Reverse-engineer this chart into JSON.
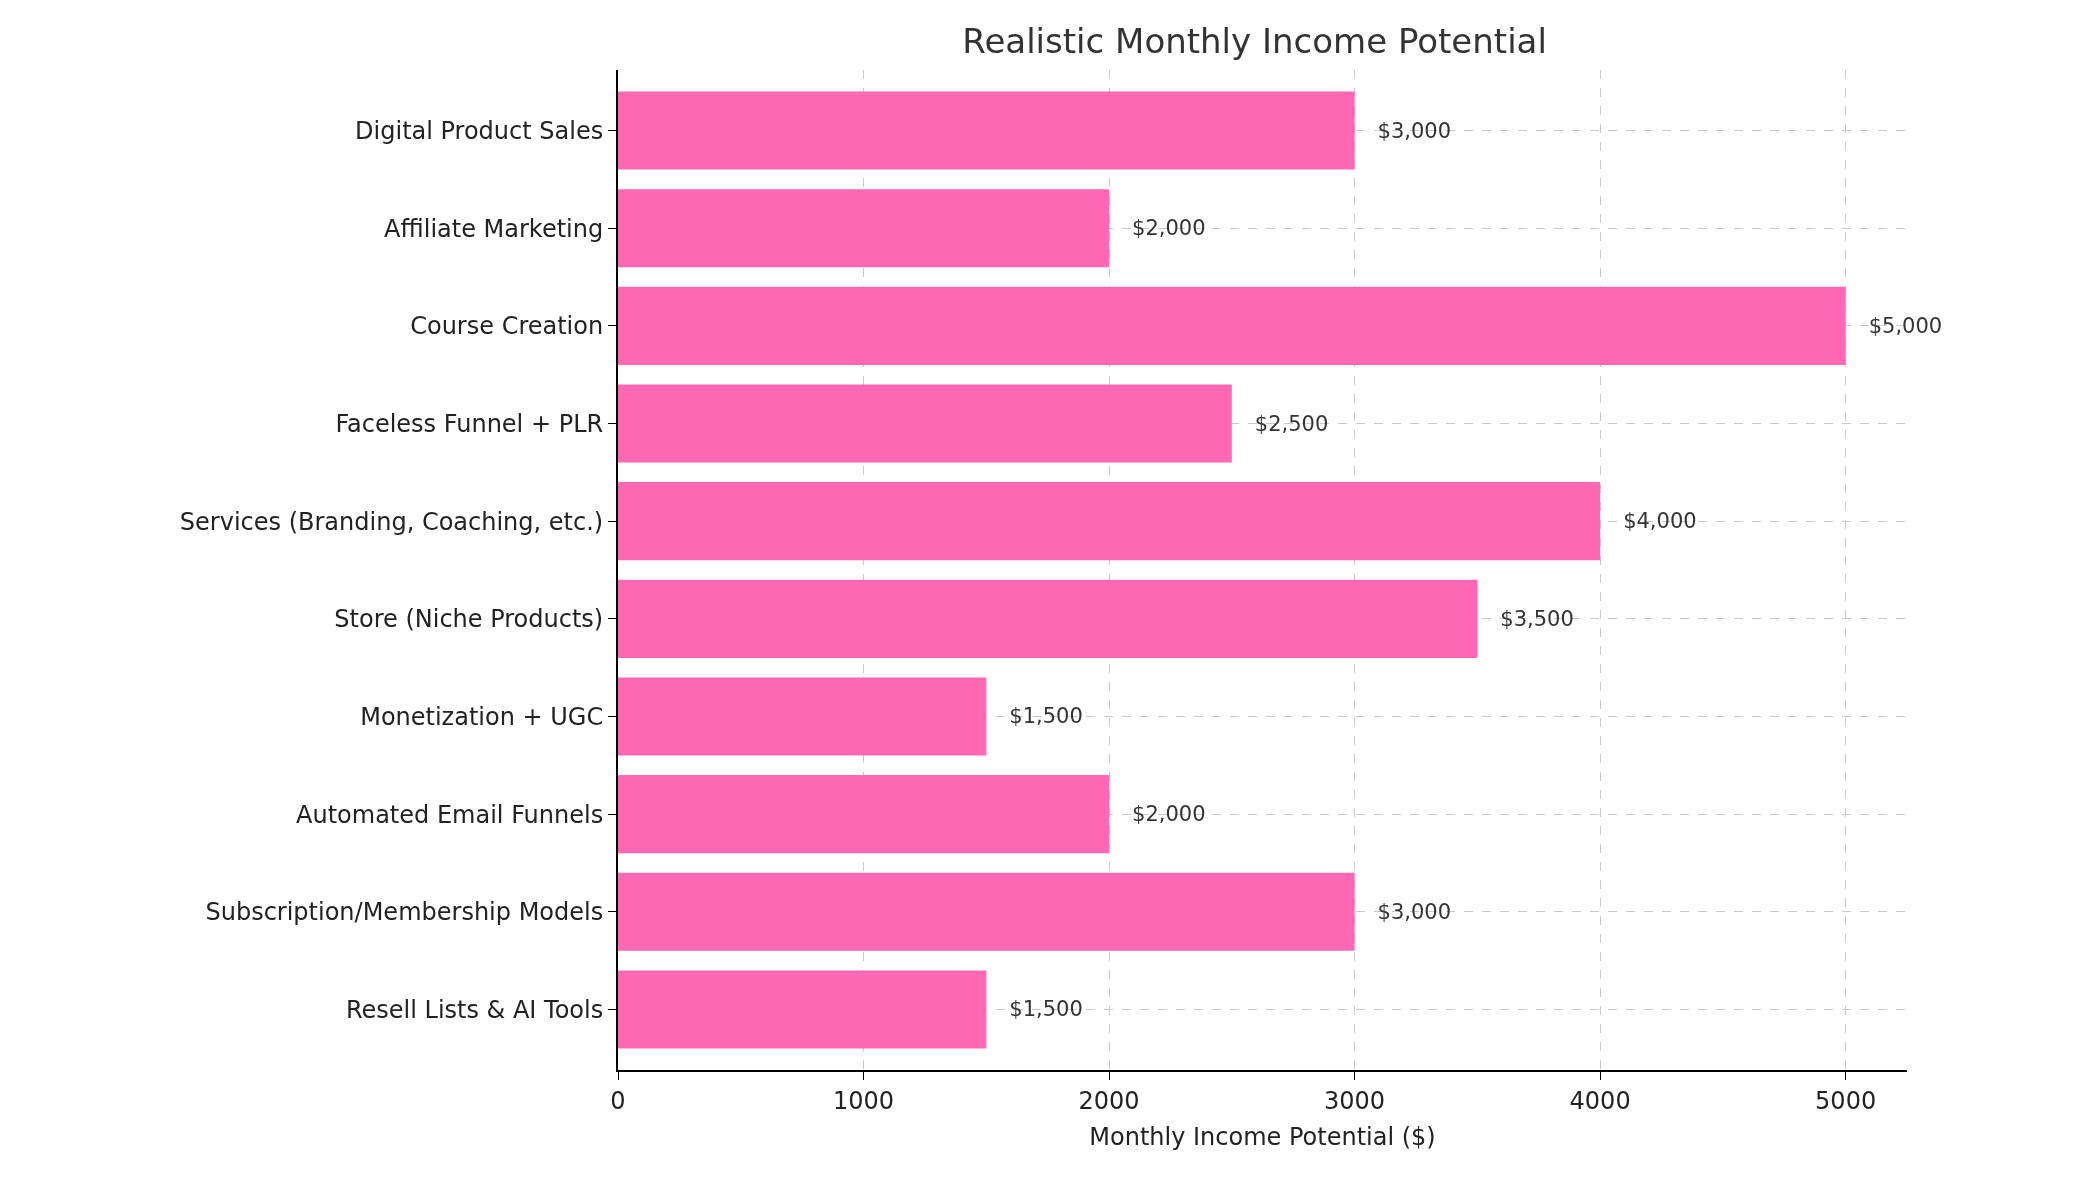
{
  "chart_data": {
    "type": "bar",
    "orientation": "horizontal",
    "title": "Realistic Monthly Income Potential",
    "xlabel": "Monthly Income Potential ($)",
    "categories": [
      "Digital Product Sales",
      "Affiliate Marketing",
      "Course Creation",
      "Faceless Funnel + PLR",
      "Services (Branding, Coaching, etc.)",
      "Store (Niche Products)",
      "Monetization + UGC",
      "Automated Email Funnels",
      "Subscription/Membership Models",
      "Resell Lists & AI Tools"
    ],
    "values": [
      3000,
      2000,
      5000,
      2500,
      4000,
      3500,
      1500,
      2000,
      3000,
      1500
    ],
    "value_labels": [
      "$3,000",
      "$2,000",
      "$5,000",
      "$2,500",
      "$4,000",
      "$3,500",
      "$1,500",
      "$2,000",
      "$3,000",
      "$1,500"
    ],
    "color": "#ff69b4",
    "xlim": [
      0,
      5250
    ],
    "xticks": [
      0,
      1000,
      2000,
      3000,
      4000,
      5000
    ],
    "grid": true
  }
}
